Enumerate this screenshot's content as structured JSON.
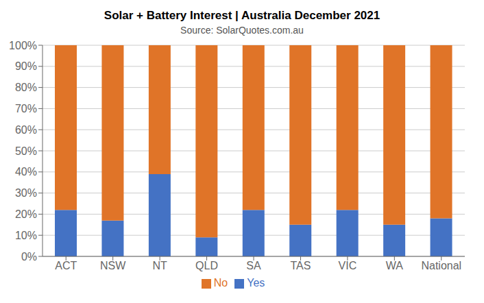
{
  "chart_data": {
    "type": "bar",
    "title": "Solar + Battery Interest | Australia December 2021",
    "subtitle": "Source: SolarQuotes.com.au",
    "categories": [
      "ACT",
      "NSW",
      "NT",
      "QLD",
      "SA",
      "TAS",
      "VIC",
      "WA",
      "National"
    ],
    "series": [
      {
        "name": "Yes",
        "color": "#4472C4",
        "values": [
          22,
          17,
          39,
          9,
          22,
          15,
          22,
          15,
          18
        ]
      },
      {
        "name": "No",
        "color": "#E07428",
        "values": [
          78,
          83,
          61,
          91,
          78,
          85,
          78,
          85,
          82
        ]
      }
    ],
    "stacked": true,
    "ylim": [
      0,
      100
    ],
    "yticks": [
      {
        "value": 0,
        "label": "0%"
      },
      {
        "value": 10,
        "label": "10%"
      },
      {
        "value": 20,
        "label": "20%"
      },
      {
        "value": 30,
        "label": "30%"
      },
      {
        "value": 40,
        "label": "40%"
      },
      {
        "value": 50,
        "label": "50%"
      },
      {
        "value": 60,
        "label": "60%"
      },
      {
        "value": 70,
        "label": "70%"
      },
      {
        "value": 80,
        "label": "80%"
      },
      {
        "value": 90,
        "label": "90%"
      },
      {
        "value": 100,
        "label": "100%"
      }
    ],
    "grid": true,
    "legend": "bottom"
  }
}
